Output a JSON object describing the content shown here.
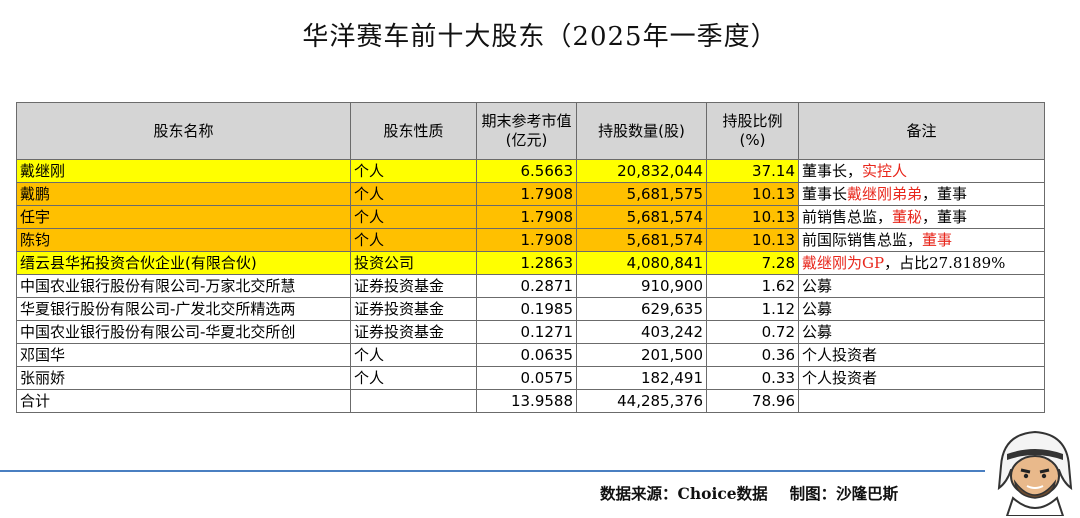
{
  "title": "华洋赛车前十大股东（2025年一季度）",
  "columns": [
    "股东名称",
    "股东性质",
    "期末参考市值(亿元)",
    "持股数量(股)",
    "持股比例(%)",
    "备注"
  ],
  "rows": [
    {
      "name": "戴继刚",
      "type": "个人",
      "value": "6.5663",
      "shares": "20,832,044",
      "pct": "37.14",
      "note_a": "董事长，",
      "note_red": "实控人",
      "note_b": ""
    },
    {
      "name": "戴鹏",
      "type": "个人",
      "value": "1.7908",
      "shares": "5,681,575",
      "pct": "10.13",
      "note_a": "董事长",
      "note_red": "戴继刚弟弟",
      "note_b": "，董事"
    },
    {
      "name": "任宇",
      "type": "个人",
      "value": "1.7908",
      "shares": "5,681,574",
      "pct": "10.13",
      "note_a": "前销售总监，",
      "note_red": "董秘",
      "note_b": "，董事"
    },
    {
      "name": "陈钧",
      "type": "个人",
      "value": "1.7908",
      "shares": "5,681,574",
      "pct": "10.13",
      "note_a": "前国际销售总监，",
      "note_red": "董事",
      "note_b": ""
    },
    {
      "name": "缙云县华拓投资合伙企业(有限合伙)",
      "type": "投资公司",
      "value": "1.2863",
      "shares": "4,080,841",
      "pct": "7.28",
      "note_a": "",
      "note_red": "戴继刚为GP",
      "note_b": "，占比27.8189%"
    },
    {
      "name": "中国农业银行股份有限公司-万家北交所慧",
      "type": "证券投资基金",
      "value": "0.2871",
      "shares": "910,900",
      "pct": "1.62",
      "note_a": "公募",
      "note_red": "",
      "note_b": ""
    },
    {
      "name": "华夏银行股份有限公司-广发北交所精选两",
      "type": "证券投资基金",
      "value": "0.1985",
      "shares": "629,635",
      "pct": "1.12",
      "note_a": "公募",
      "note_red": "",
      "note_b": ""
    },
    {
      "name": "中国农业银行股份有限公司-华夏北交所创",
      "type": "证券投资基金",
      "value": "0.1271",
      "shares": "403,242",
      "pct": "0.72",
      "note_a": "公募",
      "note_red": "",
      "note_b": ""
    },
    {
      "name": "邓国华",
      "type": "个人",
      "value": "0.0635",
      "shares": "201,500",
      "pct": "0.36",
      "note_a": "个人投资者",
      "note_red": "",
      "note_b": ""
    },
    {
      "name": "张丽娇",
      "type": "个人",
      "value": "0.0575",
      "shares": "182,491",
      "pct": "0.33",
      "note_a": "个人投资者",
      "note_red": "",
      "note_b": ""
    }
  ],
  "total": {
    "label": "合计",
    "value": "13.9588",
    "shares": "44,285,376",
    "pct": "78.96"
  },
  "footer": {
    "source": "数据来源：Choice数据",
    "maker": "制图：沙隆巴斯"
  },
  "colors": {
    "header_bg": "#d5d5d5",
    "highlight_yellow": "#ffff00",
    "highlight_orange": "#ffc000",
    "note_red": "#e8271c",
    "rule_blue": "#4a7fc1"
  },
  "icons": {
    "mascot": "cartoon-man-with-headscarf-icon"
  }
}
